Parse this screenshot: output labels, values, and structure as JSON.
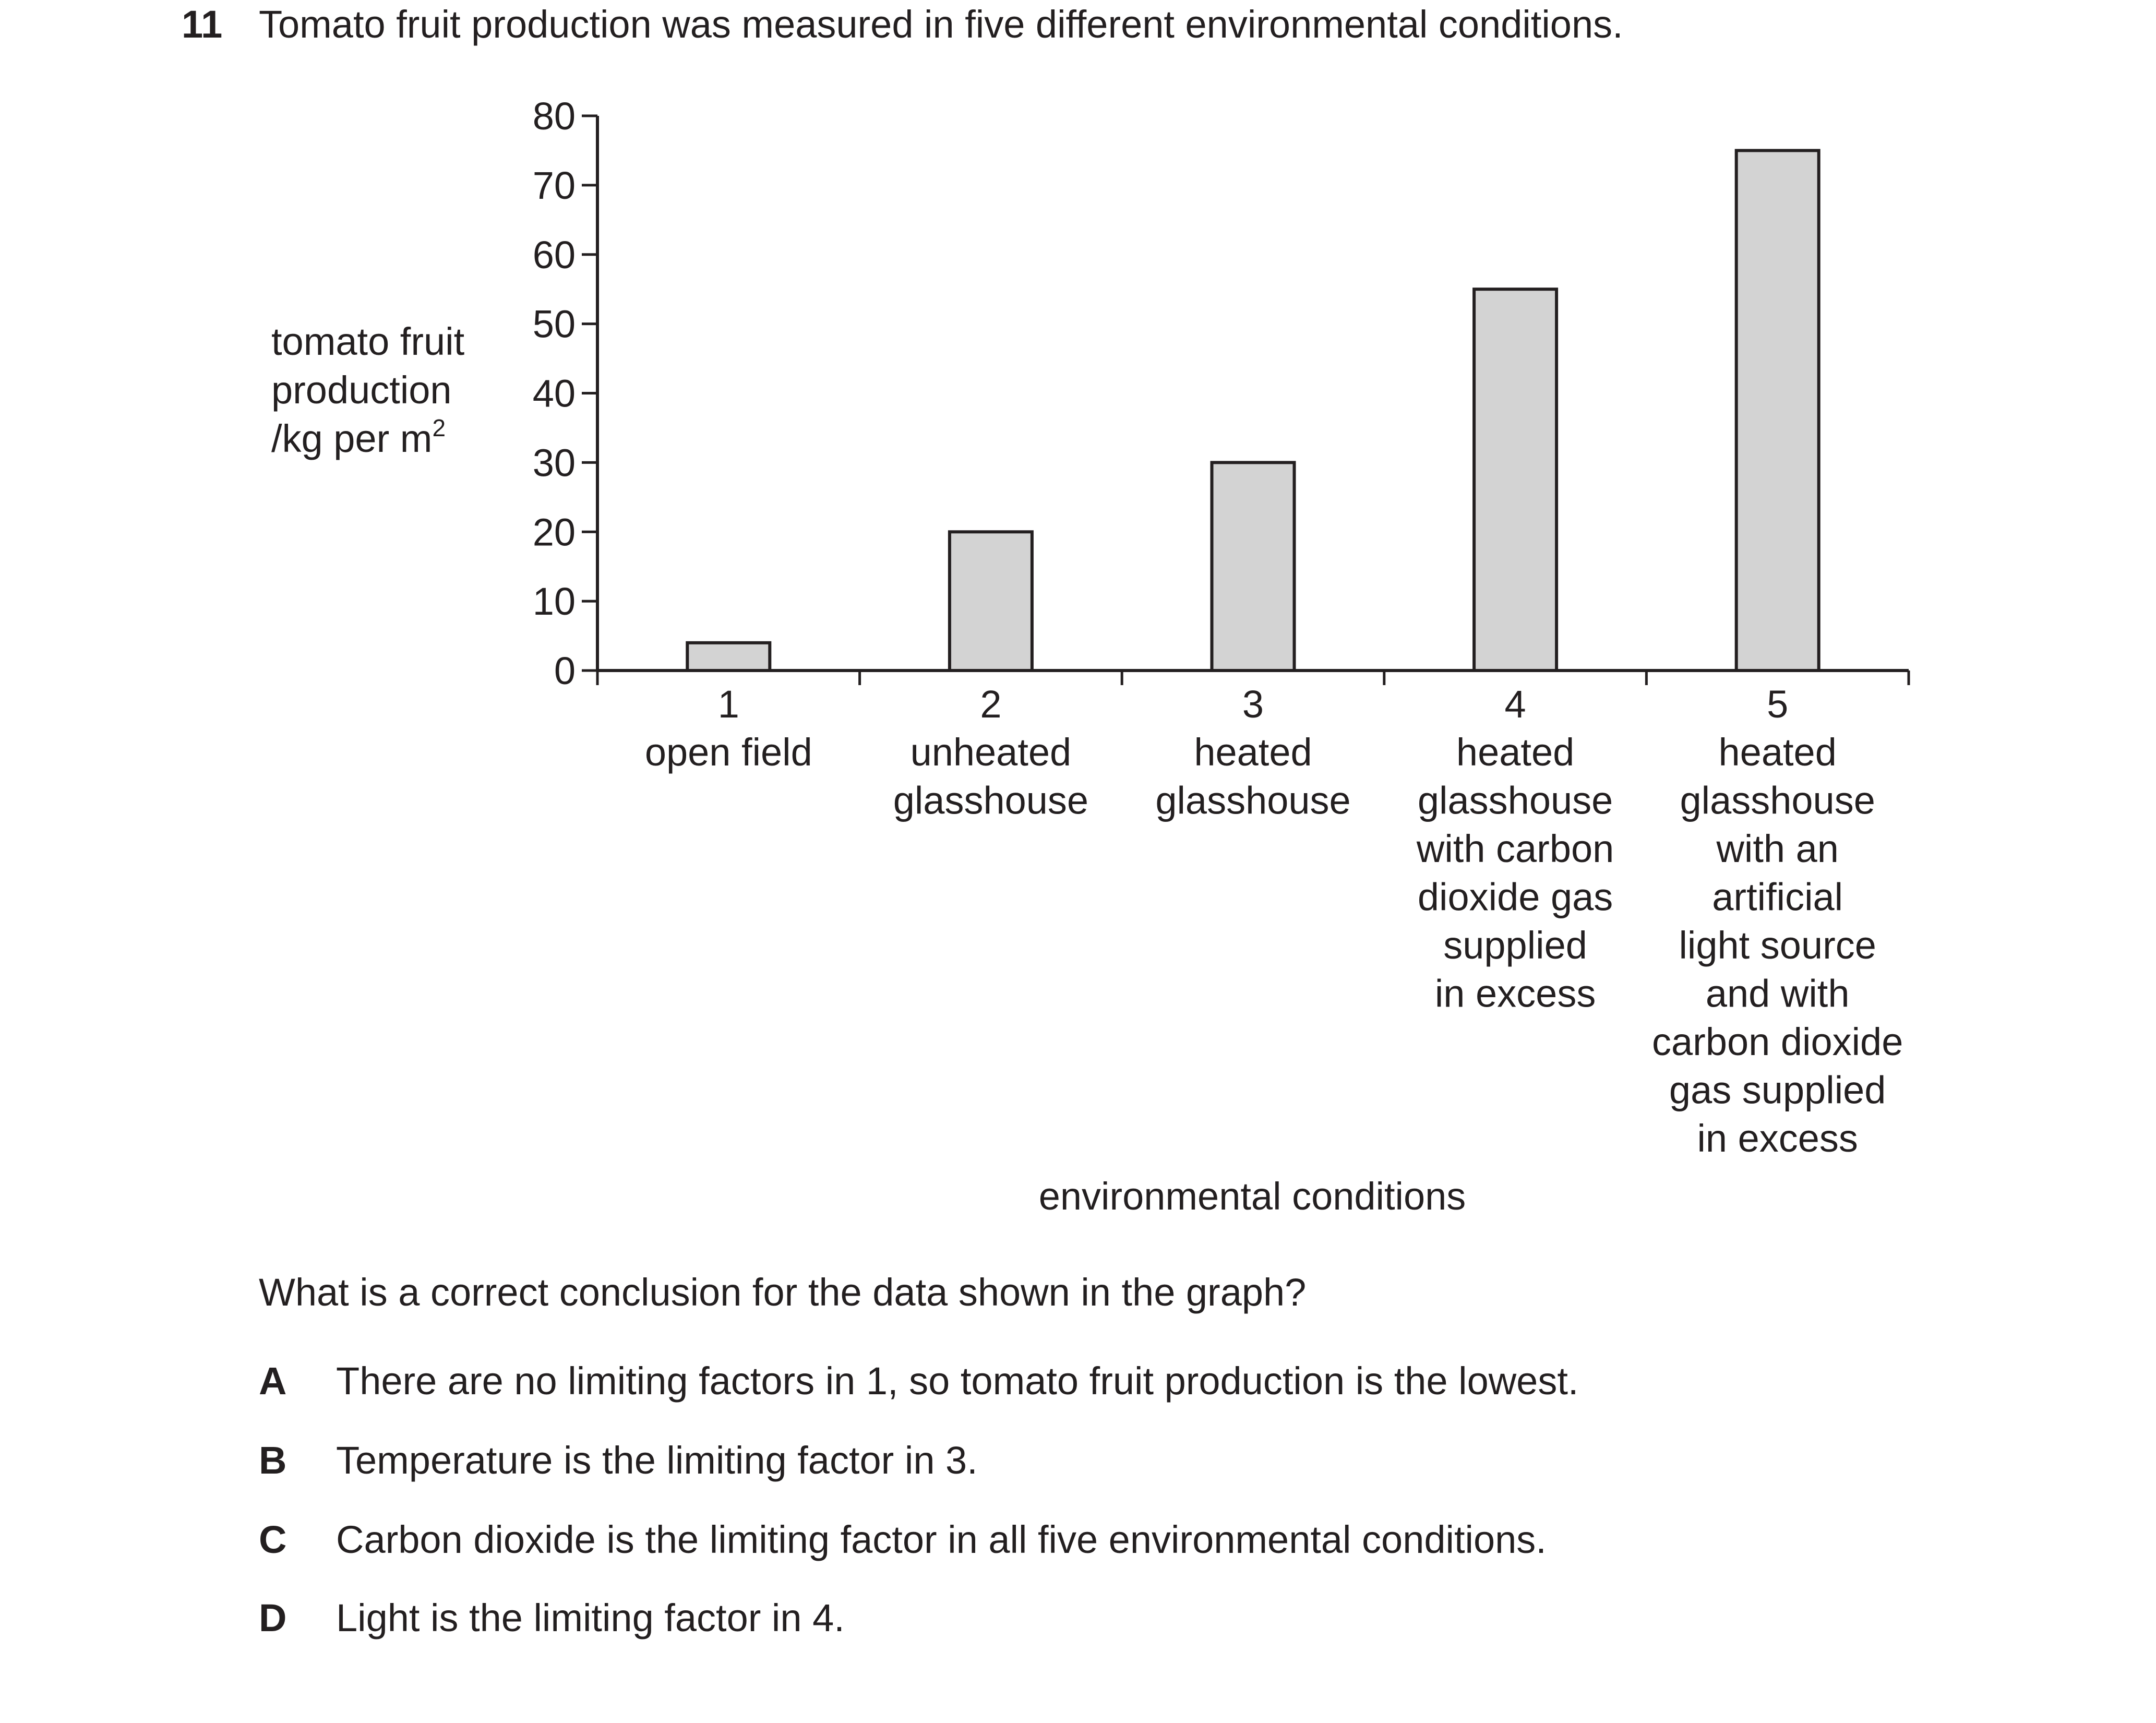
{
  "question": {
    "number": "11",
    "stem": "Tomato fruit production was measured in five different environmental conditions.",
    "prompt": "What is a correct conclusion for the data shown in the graph?",
    "options": [
      {
        "letter": "A",
        "text": "There are no limiting factors in 1, so tomato fruit production is the lowest."
      },
      {
        "letter": "B",
        "text": "Temperature is the limiting factor in 3."
      },
      {
        "letter": "C",
        "text": "Carbon dioxide is the limiting factor in all five environmental conditions."
      },
      {
        "letter": "D",
        "text": "Light is the limiting factor in 4."
      }
    ]
  },
  "chart_data": {
    "type": "bar",
    "title": "",
    "ylabel_lines": [
      "tomato fruit",
      "production",
      "/kg per m"
    ],
    "ylabel_superscript": "2",
    "xlabel": "environmental conditions",
    "ylim": [
      0,
      80
    ],
    "yticks": [
      0,
      10,
      20,
      30,
      40,
      50,
      60,
      70,
      80
    ],
    "grid": false,
    "bar_color": "#d3d3d3",
    "categories": [
      {
        "number": "1",
        "label_lines": [
          "open field"
        ]
      },
      {
        "number": "2",
        "label_lines": [
          "unheated",
          "glasshouse"
        ]
      },
      {
        "number": "3",
        "label_lines": [
          "heated",
          "glasshouse"
        ]
      },
      {
        "number": "4",
        "label_lines": [
          "heated",
          "glasshouse",
          "with carbon",
          "dioxide gas",
          "supplied",
          "in excess"
        ]
      },
      {
        "number": "5",
        "label_lines": [
          "heated",
          "glasshouse",
          "with an",
          "artificial",
          "light source",
          "and with",
          "carbon dioxide",
          "gas supplied",
          "in excess"
        ]
      }
    ],
    "values": [
      4,
      20,
      30,
      55,
      75
    ]
  }
}
